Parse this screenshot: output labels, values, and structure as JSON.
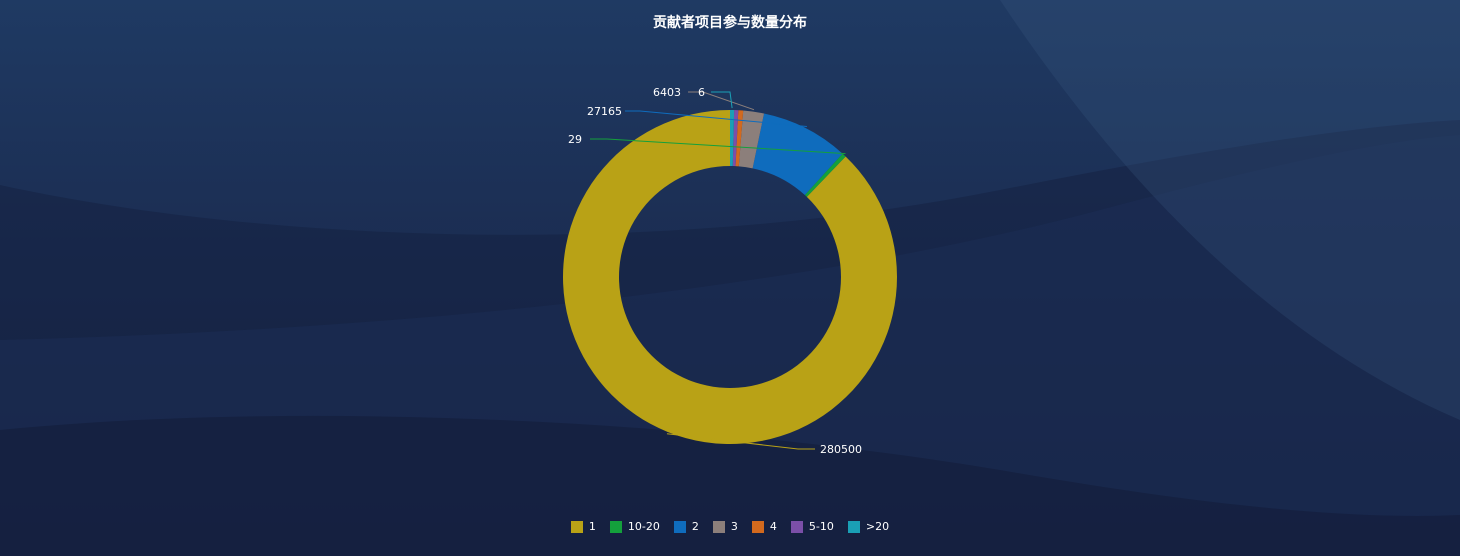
{
  "chart_data": {
    "type": "pie",
    "title": "贡献者项目参与数量分布",
    "donut": true,
    "legend_position": "bottom-center",
    "slices": [
      {
        "name": "1",
        "value": 280500,
        "color": "#b9a216"
      },
      {
        "name": "10-20",
        "value": 29,
        "color": "#14a03c"
      },
      {
        "name": "2",
        "value": 27165,
        "color": "#0f6cbd"
      },
      {
        "name": "3",
        "value": 6403,
        "color": "#8c7f7b"
      },
      {
        "name": "4",
        "value": 1500,
        "color": "#d2691e"
      },
      {
        "name": "5-10",
        "value": 350,
        "color": "#7b4fa8"
      },
      {
        "name": ">20",
        "value": 6,
        "color": "#1a9fb5"
      }
    ],
    "data_labels": [
      "280500",
      "29",
      "27165",
      "6403",
      "6"
    ]
  }
}
